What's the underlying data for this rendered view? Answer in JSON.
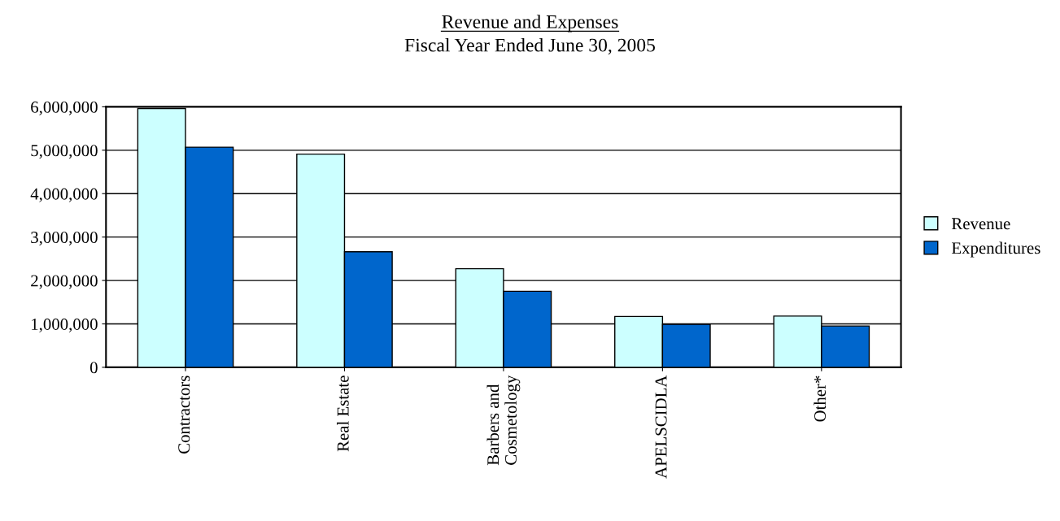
{
  "chart_data": {
    "type": "bar",
    "title": "Revenue and Expenses",
    "subtitle": "Fiscal Year Ended June 30, 2005",
    "categories": [
      "Contractors",
      "Real Estate",
      "Barbers and\nCosmetology",
      "APELSCIDLA",
      "Other*"
    ],
    "series": [
      {
        "name": "Revenue",
        "color": "#ccffff",
        "values": [
          5960000,
          4910000,
          2270000,
          1170000,
          1180000
        ]
      },
      {
        "name": "Expenditures",
        "color": "#0066cc",
        "values": [
          5070000,
          2660000,
          1750000,
          990000,
          950000
        ]
      }
    ],
    "ylim": [
      0,
      6000000
    ],
    "yticks": [
      {
        "value": 0,
        "label": "0"
      },
      {
        "value": 1000000,
        "label": "1,000,000"
      },
      {
        "value": 2000000,
        "label": "2,000,000"
      },
      {
        "value": 3000000,
        "label": "3,000,000"
      },
      {
        "value": 4000000,
        "label": "4,000,000"
      },
      {
        "value": 5000000,
        "label": "5,000,000"
      },
      {
        "value": 6000000,
        "label": "6,000,000"
      }
    ],
    "grid": "y",
    "legend": "right"
  }
}
